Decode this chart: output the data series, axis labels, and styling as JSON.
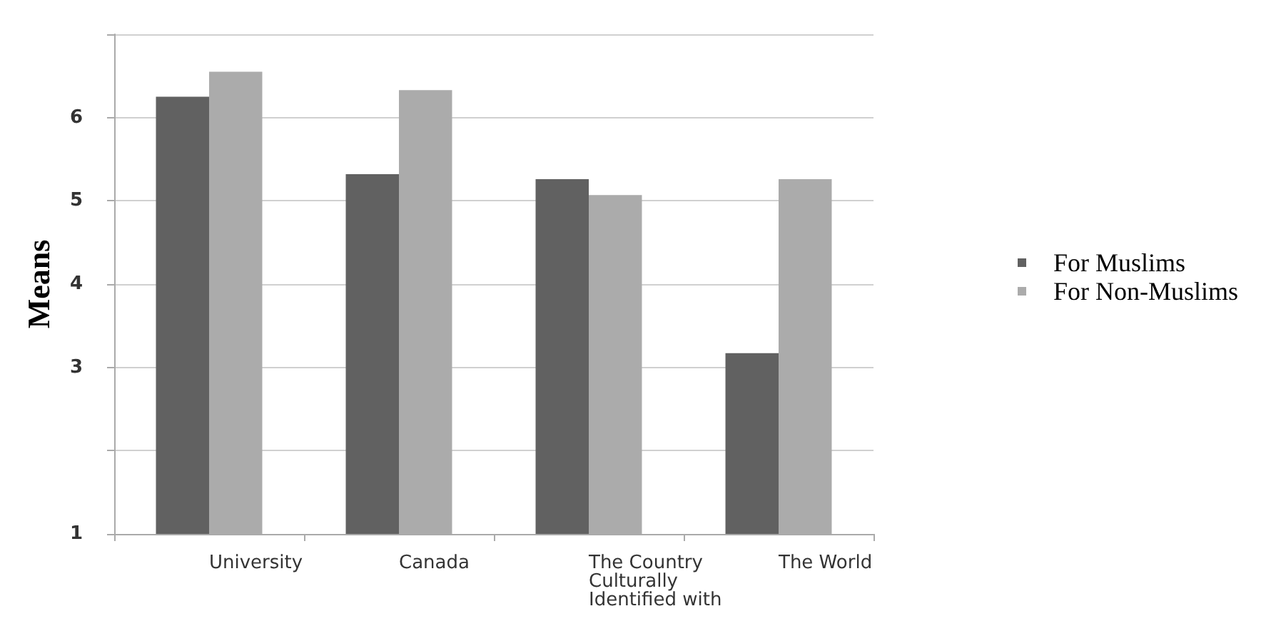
{
  "chart_data": {
    "type": "bar",
    "ylabel": "Means",
    "categories": [
      "University",
      "Canada",
      "The Country Culturally Identified with",
      "The World"
    ],
    "series": [
      {
        "name": "For Muslims",
        "color": "#616161",
        "values": [
          6.25,
          5.32,
          5.26,
          3.17
        ]
      },
      {
        "name": "For Non-Muslims",
        "color": "#ababab",
        "values": [
          6.55,
          6.33,
          5.07,
          5.26
        ]
      }
    ],
    "ylim": [
      1,
      7
    ],
    "yticks": [
      1,
      {
        "value": 2,
        "label": null
      },
      3,
      4,
      5,
      6,
      {
        "value": 7,
        "label": null
      }
    ],
    "grid": "y",
    "legend": "right"
  }
}
